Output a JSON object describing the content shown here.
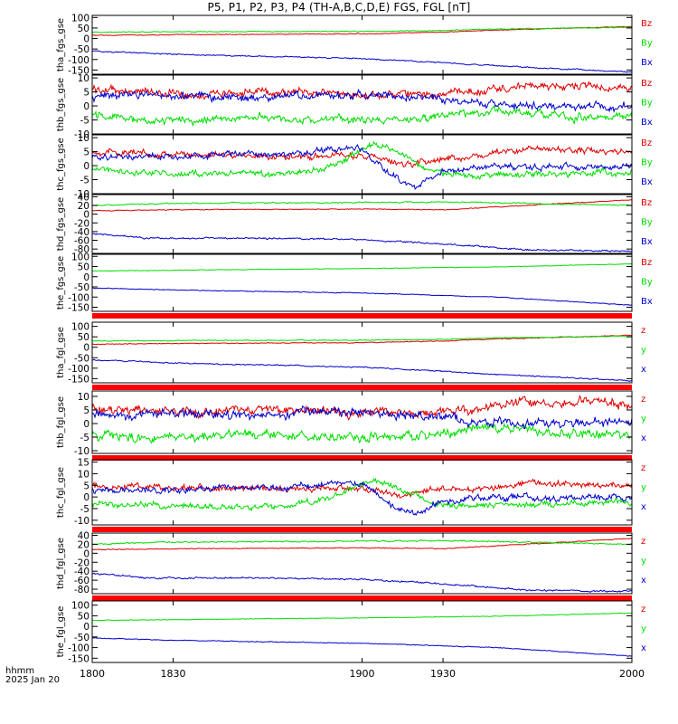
{
  "title": "P5, P1, P2, P3, P4 (TH-A,B,C,D,E) FGS, FGL [nT]",
  "x_units": {
    "line1": "hhmm",
    "line2": "2025 Jan 20"
  },
  "colors": {
    "x": "#0000cc",
    "y": "#00dd00",
    "z": "#dd0000",
    "bar": "#ff0000"
  },
  "chart_data": {
    "type": "line",
    "x_range": [
      1800,
      2000
    ],
    "x_ticks": [
      {
        "value": 1800,
        "label": "1800"
      },
      {
        "value": 1830,
        "label": "1830"
      },
      {
        "value": 1900,
        "label": "1900"
      },
      {
        "value": 1930,
        "label": "1930"
      },
      {
        "value": 2000,
        "label": "2000"
      }
    ],
    "panels": [
      {
        "ylabel": "tha_fgs_gse",
        "ylim": [
          -170,
          110
        ],
        "yticks": [
          100,
          50,
          0,
          -50,
          -100,
          -150
        ],
        "legend": [
          "Bz",
          "By",
          "Bx"
        ],
        "bar_below": false,
        "series": [
          {
            "name": "Bz",
            "comp": "z",
            "x": [
              1800,
              1830,
              1900,
              1930,
              1950,
              2000
            ],
            "y": [
              15,
              18,
              22,
              30,
              40,
              57
            ],
            "noise": 2
          },
          {
            "name": "By",
            "comp": "y",
            "x": [
              1800,
              1830,
              1900,
              1930,
              1950,
              2000
            ],
            "y": [
              30,
              32,
              34,
              38,
              45,
              53
            ],
            "noise": 2
          },
          {
            "name": "Bx",
            "comp": "x",
            "x": [
              1800,
              1830,
              1900,
              1930,
              1950,
              2000
            ],
            "y": [
              -60,
              -75,
              -95,
              -115,
              -130,
              -160
            ],
            "noise": 3
          }
        ]
      },
      {
        "ylabel": "thb_fgs_gse",
        "ylim": [
          -10,
          11
        ],
        "yticks": [
          10,
          5,
          0,
          -5,
          -10
        ],
        "legend": [
          "Bz",
          "By",
          "Bx"
        ],
        "bar_below": false,
        "series": [
          {
            "name": "Bz",
            "comp": "z",
            "x": [
              1800,
              1820,
              1840,
              1860,
              1880,
              1900,
              1920,
              1940,
              1960,
              1980,
              2000
            ],
            "y": [
              6,
              5,
              4,
              5,
              5,
              4,
              4,
              5,
              7,
              7,
              6
            ],
            "noise": 1.5
          },
          {
            "name": "By",
            "comp": "y",
            "x": [
              1800,
              1820,
              1840,
              1860,
              1880,
              1900,
              1920,
              1940,
              1960,
              1980,
              2000
            ],
            "y": [
              -3,
              -5,
              -5,
              -4,
              -5,
              -5,
              -5,
              -2,
              -2,
              -4,
              -4
            ],
            "noise": 1.5
          },
          {
            "name": "Bx",
            "comp": "x",
            "x": [
              1800,
              1820,
              1840,
              1860,
              1880,
              1900,
              1920,
              1940,
              1960,
              1980,
              2000
            ],
            "y": [
              3,
              4,
              3,
              3,
              4,
              4,
              3,
              1,
              0,
              0,
              0
            ],
            "noise": 1.5
          }
        ]
      },
      {
        "ylabel": "thc_fgs_gse",
        "ylim": [
          -10,
          11
        ],
        "yticks": [
          10,
          5,
          0,
          -5,
          -10
        ],
        "legend": [
          "Bz",
          "By",
          "Bx"
        ],
        "bar_below": false,
        "series": [
          {
            "name": "Bz",
            "comp": "z",
            "x": [
              1800,
              1830,
              1850,
              1870,
              1890,
              1905,
              1915,
              1925,
              1940,
              1960,
              2000
            ],
            "y": [
              5,
              4,
              4,
              3,
              4,
              3,
              0,
              2,
              3,
              6,
              5
            ],
            "noise": 1.2
          },
          {
            "name": "By",
            "comp": "y",
            "x": [
              1800,
              1830,
              1850,
              1870,
              1890,
              1900,
              1905,
              1915,
              1925,
              1940,
              1960,
              2000
            ],
            "y": [
              -1,
              -3,
              -3,
              -3,
              0,
              6,
              8,
              4,
              -2,
              -4,
              -3,
              -2
            ],
            "noise": 1.2
          },
          {
            "name": "Bx",
            "comp": "x",
            "x": [
              1800,
              1830,
              1850,
              1870,
              1890,
              1900,
              1910,
              1920,
              1930,
              1950,
              1970,
              2000
            ],
            "y": [
              3,
              3,
              4,
              4,
              6,
              6,
              -3,
              -8,
              -2,
              0,
              -1,
              0
            ],
            "noise": 1.2
          }
        ]
      },
      {
        "ylabel": "thd_fgs_gse",
        "ylim": [
          -90,
          45
        ],
        "yticks": [
          40,
          20,
          0,
          -20,
          -40,
          -60,
          -80
        ],
        "legend": [
          "Bz",
          "By",
          "Bx"
        ],
        "bar_below": false,
        "series": [
          {
            "name": "Bz",
            "comp": "z",
            "x": [
              1800,
              1830,
              1900,
              1930,
              1960,
              2000
            ],
            "y": [
              8,
              10,
              12,
              10,
              20,
              33
            ],
            "noise": 1
          },
          {
            "name": "By",
            "comp": "y",
            "x": [
              1800,
              1830,
              1900,
              1930,
              1960,
              2000
            ],
            "y": [
              20,
              25,
              27,
              28,
              25,
              20
            ],
            "noise": 1.5
          },
          {
            "name": "Bx",
            "comp": "x",
            "x": [
              1800,
              1820,
              1860,
              1900,
              1940,
              1960,
              2000
            ],
            "y": [
              -45,
              -55,
              -55,
              -58,
              -72,
              -82,
              -85
            ],
            "noise": 2
          }
        ]
      },
      {
        "ylabel": "the_fgs_gse",
        "ylim": [
          -170,
          110
        ],
        "yticks": [
          100,
          50,
          0,
          -50,
          -100,
          -150
        ],
        "legend": [
          "Bz",
          "By",
          "Bx"
        ],
        "bar_below": true,
        "series": [
          {
            "name": "Bz",
            "comp": "z",
            "x": [],
            "y": [],
            "noise": 0
          },
          {
            "name": "By",
            "comp": "y",
            "x": [
              1800,
              1900,
              1950,
              2000
            ],
            "y": [
              28,
              40,
              48,
              63
            ],
            "noise": 1.5
          },
          {
            "name": "Bx",
            "comp": "x",
            "x": [
              1800,
              1830,
              1900,
              1950,
              2000
            ],
            "y": [
              -55,
              -65,
              -80,
              -100,
              -140
            ],
            "noise": 2
          }
        ]
      },
      {
        "ylabel": "tha_fgl_gse",
        "ylim": [
          -170,
          120
        ],
        "yticks": [
          100,
          50,
          0,
          -50,
          -100,
          -150
        ],
        "legend": [
          "z",
          "y",
          "x"
        ],
        "bar_below": true,
        "series": [
          {
            "name": "z",
            "comp": "z",
            "x": [
              1800,
              1830,
              1900,
              1930,
              1950,
              2000
            ],
            "y": [
              15,
              18,
              22,
              30,
              40,
              57
            ],
            "noise": 2
          },
          {
            "name": "y",
            "comp": "y",
            "x": [
              1800,
              1830,
              1900,
              1930,
              1950,
              2000
            ],
            "y": [
              30,
              32,
              34,
              38,
              45,
              53
            ],
            "noise": 2
          },
          {
            "name": "x",
            "comp": "x",
            "x": [
              1800,
              1830,
              1900,
              1930,
              1950,
              2000
            ],
            "y": [
              -60,
              -75,
              -95,
              -115,
              -130,
              -160
            ],
            "noise": 3
          }
        ]
      },
      {
        "ylabel": "thb_fgl_gse",
        "ylim": [
          -11,
          12
        ],
        "yticks": [
          10,
          5,
          0,
          -5,
          -10
        ],
        "legend": [
          "z",
          "y",
          "x"
        ],
        "bar_below": true,
        "series": [
          {
            "name": "z",
            "comp": "z",
            "x": [
              1800,
              1820,
              1840,
              1860,
              1880,
              1900,
              1920,
              1940,
              1960,
              1980,
              2000
            ],
            "y": [
              6,
              5,
              4,
              5,
              5,
              4,
              4,
              5,
              8,
              8,
              7
            ],
            "noise": 1.8
          },
          {
            "name": "y",
            "comp": "y",
            "x": [
              1800,
              1820,
              1840,
              1860,
              1880,
              1900,
              1920,
              1940,
              1960,
              1980,
              2000
            ],
            "y": [
              -4,
              -5,
              -5,
              -4,
              -5,
              -5,
              -5,
              -2,
              -2,
              -4,
              -4
            ],
            "noise": 1.8
          },
          {
            "name": "x",
            "comp": "x",
            "x": [
              1800,
              1820,
              1840,
              1860,
              1880,
              1900,
              1920,
              1940,
              1960,
              1980,
              2000
            ],
            "y": [
              3,
              4,
              3,
              3,
              4,
              4,
              3,
              1,
              0,
              0,
              1
            ],
            "noise": 1.8
          }
        ]
      },
      {
        "ylabel": "thc_fgl_gse",
        "ylim": [
          -12,
          16
        ],
        "yticks": [
          15,
          10,
          5,
          0,
          -5,
          -10
        ],
        "legend": [
          "z",
          "y",
          "x"
        ],
        "bar_below": true,
        "series": [
          {
            "name": "z",
            "comp": "z",
            "x": [
              1800,
              1830,
              1850,
              1870,
              1890,
              1905,
              1915,
              1925,
              1940,
              1960,
              2000
            ],
            "y": [
              5,
              4,
              4,
              3,
              4,
              3,
              0,
              4,
              3,
              6,
              5
            ],
            "noise": 1.4
          },
          {
            "name": "y",
            "comp": "y",
            "x": [
              1800,
              1830,
              1850,
              1870,
              1890,
              1900,
              1905,
              1915,
              1925,
              1940,
              1960,
              2000
            ],
            "y": [
              -3,
              -4,
              -4,
              -4,
              0,
              6,
              7,
              3,
              -2,
              -4,
              -3,
              -2
            ],
            "noise": 1.4
          },
          {
            "name": "x",
            "comp": "x",
            "x": [
              1800,
              1830,
              1850,
              1870,
              1890,
              1900,
              1910,
              1920,
              1930,
              1950,
              1970,
              2000
            ],
            "y": [
              3,
              3,
              4,
              4,
              6,
              6,
              -3,
              -8,
              -2,
              0,
              -1,
              0
            ],
            "noise": 1.4
          }
        ]
      },
      {
        "ylabel": "thd_fgl_gse",
        "ylim": [
          -90,
          45
        ],
        "yticks": [
          40,
          20,
          0,
          -20,
          -40,
          -60,
          -80
        ],
        "legend": [
          "z",
          "y",
          "x"
        ],
        "bar_below": true,
        "series": [
          {
            "name": "z",
            "comp": "z",
            "x": [
              1800,
              1830,
              1900,
              1930,
              1960,
              2000
            ],
            "y": [
              8,
              10,
              12,
              10,
              20,
              33
            ],
            "noise": 1
          },
          {
            "name": "y",
            "comp": "y",
            "x": [
              1800,
              1830,
              1900,
              1930,
              1960,
              2000
            ],
            "y": [
              20,
              25,
              27,
              28,
              25,
              20
            ],
            "noise": 1.5
          },
          {
            "name": "x",
            "comp": "x",
            "x": [
              1800,
              1820,
              1860,
              1900,
              1940,
              1960,
              2000
            ],
            "y": [
              -45,
              -55,
              -55,
              -58,
              -72,
              -82,
              -85
            ],
            "noise": 2
          }
        ]
      },
      {
        "ylabel": "the_fgl_gse",
        "ylim": [
          -170,
          120
        ],
        "yticks": [
          100,
          50,
          0,
          -50,
          -100,
          -150
        ],
        "legend": [
          "z",
          "y",
          "x"
        ],
        "bar_below": false,
        "series": [
          {
            "name": "z",
            "comp": "z",
            "x": [],
            "y": [],
            "noise": 0
          },
          {
            "name": "y",
            "comp": "y",
            "x": [
              1800,
              1900,
              1950,
              2000
            ],
            "y": [
              28,
              40,
              48,
              63
            ],
            "noise": 1.5
          },
          {
            "name": "x",
            "comp": "x",
            "x": [
              1800,
              1830,
              1900,
              1950,
              2000
            ],
            "y": [
              -55,
              -65,
              -80,
              -100,
              -140
            ],
            "noise": 2
          }
        ]
      }
    ]
  }
}
